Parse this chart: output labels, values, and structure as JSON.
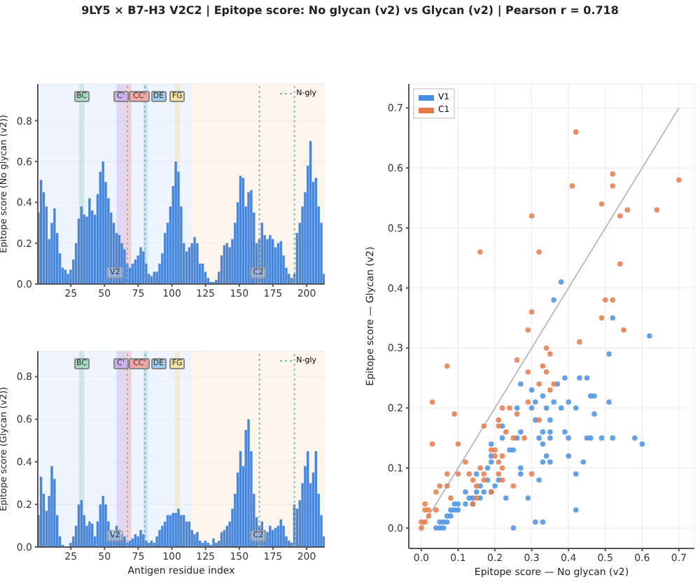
{
  "chart_data": [
    {
      "type": "bar",
      "title": "9LY5 × B7-H3 V2C2  |  Epitope score: No glycan (v2) vs Glycan (v2)  |  Pearson r = 0.718",
      "ylabel": "Epitope score (No glycan (v2))",
      "color": "#4a86d8",
      "grid": "y",
      "legend": "top right",
      "x": [
        1,
        3,
        5,
        7,
        9,
        11,
        13,
        15,
        17,
        19,
        21,
        23,
        25,
        27,
        29,
        31,
        33,
        35,
        37,
        39,
        41,
        43,
        45,
        47,
        49,
        51,
        53,
        55,
        57,
        59,
        61,
        63,
        65,
        67,
        69,
        71,
        73,
        75,
        77,
        79,
        81,
        83,
        85,
        87,
        89,
        91,
        93,
        95,
        97,
        99,
        101,
        103,
        105,
        107,
        109,
        111,
        113,
        115,
        117,
        119,
        121,
        123,
        125,
        127,
        129,
        131,
        133,
        135,
        137,
        139,
        141,
        143,
        145,
        147,
        149,
        151,
        153,
        155,
        157,
        159,
        161,
        163,
        165,
        167,
        169,
        171,
        173,
        175,
        177,
        179,
        181,
        183,
        185,
        187,
        189,
        191,
        193,
        195,
        197,
        199,
        201,
        203,
        205,
        207,
        209,
        211,
        213
      ],
      "values": [
        0.35,
        0.51,
        0.45,
        0.38,
        0.22,
        0.3,
        0.37,
        0.25,
        0.15,
        0.08,
        0.07,
        0.05,
        0.07,
        0.12,
        0.2,
        0.32,
        0.38,
        0.34,
        0.33,
        0.42,
        0.36,
        0.34,
        0.44,
        0.55,
        0.6,
        0.5,
        0.42,
        0.35,
        0.3,
        0.25,
        0.24,
        0.2,
        0.17,
        0.1,
        0.08,
        0.1,
        0.12,
        0.14,
        0.18,
        0.16,
        0.1,
        0.05,
        0.04,
        0.06,
        0.06,
        0.1,
        0.15,
        0.25,
        0.3,
        0.38,
        0.48,
        0.6,
        0.55,
        0.38,
        0.2,
        0.16,
        0.18,
        0.2,
        0.23,
        0.2,
        0.1,
        0.1,
        0.06,
        0.03,
        0.01,
        0.01,
        0.02,
        0.06,
        0.14,
        0.19,
        0.2,
        0.18,
        0.22,
        0.3,
        0.4,
        0.53,
        0.52,
        0.38,
        0.45,
        0.46,
        0.35,
        0.2,
        0.22,
        0.3,
        0.24,
        0.22,
        0.24,
        0.22,
        0.18,
        0.2,
        0.21,
        0.14,
        0.08,
        0.05,
        0.03,
        0.05,
        0.25,
        0.3,
        0.38,
        0.45,
        0.58,
        0.7,
        0.5,
        0.52,
        0.38,
        0.3,
        0.05
      ],
      "xlim": [
        0.5,
        213.5
      ],
      "xticks": [
        25,
        50,
        75,
        100,
        125,
        150,
        175,
        200
      ],
      "ylim": [
        0,
        0.98
      ],
      "yticks": [
        {
          "value": 0,
          "label": "0.0"
        },
        {
          "value": 0.2,
          "label": "0.2"
        },
        {
          "value": 0.4,
          "label": "0.4"
        },
        {
          "value": 0.6,
          "label": "0.6"
        },
        {
          "value": 0.8,
          "label": "0.8"
        }
      ],
      "bands": [
        {
          "axis": "x",
          "from": 0.5,
          "to": 115,
          "label": "V2",
          "color": "#e4efff"
        },
        {
          "axis": "x",
          "from": 115,
          "to": 213.5,
          "label": "C2",
          "color": "#fdeedf"
        },
        {
          "axis": "x",
          "from": 31,
          "to": 35,
          "label": "BC",
          "color": "#a6dcc0"
        },
        {
          "axis": "x",
          "from": 59,
          "to": 65,
          "label": "C'",
          "color": "#cbb2ea"
        },
        {
          "axis": "x",
          "from": 65,
          "to": 70,
          "label": "CC'",
          "color": "#f3a6a6"
        },
        {
          "axis": "x",
          "from": 79,
          "to": 82,
          "label": "DE",
          "color": "#9fcdf0"
        },
        {
          "axis": "x",
          "from": 102,
          "to": 106,
          "label": "FG",
          "color": "#f5e2a4"
        }
      ],
      "ref_lines": [
        {
          "axis": "x",
          "value": 67,
          "color": "#7fb5b5",
          "line_style": "dotted"
        },
        {
          "axis": "x",
          "value": 80,
          "color": "#7fb5b5",
          "line_style": "dotted"
        },
        {
          "axis": "x",
          "value": 165,
          "color": "#7fb5b5",
          "line_style": "dotted"
        },
        {
          "axis": "x",
          "value": 191,
          "label": "N-gly",
          "color": "#7fb5b5",
          "line_style": "dotted"
        }
      ]
    },
    {
      "type": "bar",
      "ylabel": "Epitope score (Glycan (v2))",
      "xlabel": "Antigen residue index",
      "color": "#4a86d8",
      "grid": "y",
      "legend": "top right",
      "x": [
        1,
        3,
        5,
        7,
        9,
        11,
        13,
        15,
        17,
        19,
        21,
        23,
        25,
        27,
        29,
        31,
        33,
        35,
        37,
        39,
        41,
        43,
        45,
        47,
        49,
        51,
        53,
        55,
        57,
        59,
        61,
        63,
        65,
        67,
        69,
        71,
        73,
        75,
        77,
        79,
        81,
        83,
        85,
        87,
        89,
        91,
        93,
        95,
        97,
        99,
        101,
        103,
        105,
        107,
        109,
        111,
        113,
        115,
        117,
        119,
        121,
        123,
        125,
        127,
        129,
        131,
        133,
        135,
        137,
        139,
        141,
        143,
        145,
        147,
        149,
        151,
        153,
        155,
        157,
        159,
        161,
        163,
        165,
        167,
        169,
        171,
        173,
        175,
        177,
        179,
        181,
        183,
        185,
        187,
        189,
        191,
        193,
        195,
        197,
        199,
        201,
        203,
        205,
        207,
        209,
        211,
        213
      ],
      "values": [
        0.15,
        0.33,
        0.25,
        0.17,
        0.24,
        0.38,
        0.32,
        0.15,
        0.05,
        0.01,
        0.0,
        0.0,
        0.02,
        0.05,
        0.1,
        0.2,
        0.22,
        0.15,
        0.1,
        0.12,
        0.11,
        0.05,
        0.12,
        0.2,
        0.24,
        0.2,
        0.12,
        0.08,
        0.06,
        0.1,
        0.08,
        0.06,
        0.05,
        0.02,
        0.03,
        0.04,
        0.06,
        0.05,
        0.08,
        0.06,
        0.03,
        0.02,
        0.03,
        0.02,
        0.05,
        0.08,
        0.1,
        0.12,
        0.15,
        0.15,
        0.16,
        0.16,
        0.18,
        0.15,
        0.15,
        0.12,
        0.12,
        0.08,
        0.06,
        0.07,
        0.03,
        0.02,
        0.03,
        0.02,
        0.01,
        0.04,
        0.02,
        0.03,
        0.07,
        0.08,
        0.1,
        0.12,
        0.18,
        0.25,
        0.35,
        0.45,
        0.38,
        0.55,
        0.6,
        0.45,
        0.25,
        0.14,
        0.1,
        0.12,
        0.08,
        0.07,
        0.1,
        0.08,
        0.09,
        0.1,
        0.13,
        0.1,
        0.05,
        0.03,
        0.02,
        0.2,
        0.18,
        0.22,
        0.3,
        0.38,
        0.45,
        0.3,
        0.35,
        0.45,
        0.25,
        0.15,
        0.05
      ],
      "xlim": [
        0.5,
        213.5
      ],
      "xticks": [
        25,
        50,
        75,
        100,
        125,
        150,
        175,
        200
      ],
      "ylim": [
        0,
        0.92
      ],
      "yticks": [
        {
          "value": 0,
          "label": "0.0"
        },
        {
          "value": 0.2,
          "label": "0.2"
        },
        {
          "value": 0.4,
          "label": "0.4"
        },
        {
          "value": 0.6,
          "label": "0.6"
        },
        {
          "value": 0.8,
          "label": "0.8"
        }
      ],
      "bands": [
        {
          "axis": "x",
          "from": 0.5,
          "to": 115,
          "label": "V2",
          "color": "#e4efff"
        },
        {
          "axis": "x",
          "from": 115,
          "to": 213.5,
          "label": "C2",
          "color": "#fdeedf"
        },
        {
          "axis": "x",
          "from": 31,
          "to": 35,
          "label": "BC",
          "color": "#a6dcc0"
        },
        {
          "axis": "x",
          "from": 59,
          "to": 65,
          "label": "C'",
          "color": "#cbb2ea"
        },
        {
          "axis": "x",
          "from": 65,
          "to": 70,
          "label": "CC'",
          "color": "#f3a6a6"
        },
        {
          "axis": "x",
          "from": 79,
          "to": 82,
          "label": "DE",
          "color": "#9fcdf0"
        },
        {
          "axis": "x",
          "from": 102,
          "to": 106,
          "label": "FG",
          "color": "#f5e2a4"
        }
      ],
      "ref_lines": [
        {
          "axis": "x",
          "value": 67,
          "color": "#7fb5b5",
          "line_style": "dotted"
        },
        {
          "axis": "x",
          "value": 80,
          "color": "#7fb5b5",
          "line_style": "dotted"
        },
        {
          "axis": "x",
          "value": 165,
          "color": "#7fb5b5",
          "line_style": "dotted"
        },
        {
          "axis": "x",
          "value": 191,
          "label": "N-gly",
          "color": "#7fb5b5",
          "line_style": "dotted"
        }
      ]
    },
    {
      "type": "scatter",
      "xlabel": "Epitope score — No glycan (v2)",
      "ylabel": "Epitope score — Glycan (v2)",
      "grid": true,
      "legend": "top left",
      "marker": "circle",
      "xlim": [
        -0.034,
        0.742
      ],
      "ylim": [
        -0.034,
        0.74
      ],
      "xticks": [
        {
          "value": 0,
          "label": "0.0"
        },
        {
          "value": 0.1,
          "label": "0.1"
        },
        {
          "value": 0.2,
          "label": "0.2"
        },
        {
          "value": 0.3,
          "label": "0.3"
        },
        {
          "value": 0.4,
          "label": "0.4"
        },
        {
          "value": 0.5,
          "label": "0.5"
        },
        {
          "value": 0.6,
          "label": "0.6"
        },
        {
          "value": 0.7,
          "label": "0.7"
        }
      ],
      "yticks": [
        {
          "value": 0,
          "label": "0.0"
        },
        {
          "value": 0.1,
          "label": "0.1"
        },
        {
          "value": 0.2,
          "label": "0.2"
        },
        {
          "value": 0.3,
          "label": "0.3"
        },
        {
          "value": 0.4,
          "label": "0.4"
        },
        {
          "value": 0.5,
          "label": "0.5"
        },
        {
          "value": 0.6,
          "label": "0.6"
        },
        {
          "value": 0.7,
          "label": "0.7"
        }
      ],
      "series": [
        {
          "type": "line",
          "color": "#b0b0b0",
          "marker": "none",
          "x": [
            0,
            0.7
          ],
          "values": [
            0,
            0.7
          ]
        },
        {
          "name": "V1",
          "color": "#4a90e2",
          "x": [
            0.38,
            0.36,
            0.52,
            0.62,
            0.51,
            0.43,
            0.45,
            0.47,
            0.46,
            0.39,
            0.37,
            0.3,
            0.26,
            0.27,
            0.33,
            0.3,
            0.31,
            0.36,
            0.34,
            0.38,
            0.4,
            0.42,
            0.51,
            0.47,
            0.31,
            0.35,
            0.27,
            0.26,
            0.33,
            0.35,
            0.35,
            0.39,
            0.4,
            0.45,
            0.46,
            0.49,
            0.52,
            0.58,
            0.6,
            0.32,
            0.33,
            0.22,
            0.22,
            0.24,
            0.25,
            0.19,
            0.19,
            0.19,
            0.18,
            0.34,
            0.35,
            0.33,
            0.4,
            0.44,
            0.27,
            0.42,
            0.32,
            0.27,
            0.21,
            0.15,
            0.18,
            0.16,
            0.2,
            0.15,
            0.12,
            0.19,
            0.23,
            0.29,
            0.14,
            0.17,
            0.16,
            0.13,
            0.12,
            0.14,
            0.09,
            0.1,
            0.1,
            0.09,
            0.08,
            0.08,
            0.07,
            0.07,
            0.06,
            0.05,
            0.04,
            0.05,
            0.06,
            0.42,
            0.33,
            0.31,
            0.25
          ],
          "values": [
            0.41,
            0.38,
            0.35,
            0.32,
            0.29,
            0.25,
            0.25,
            0.22,
            0.22,
            0.25,
            0.24,
            0.23,
            0.2,
            0.24,
            0.22,
            0.2,
            0.21,
            0.21,
            0.2,
            0.2,
            0.21,
            0.2,
            0.21,
            0.19,
            0.18,
            0.18,
            0.16,
            0.15,
            0.16,
            0.16,
            0.15,
            0.16,
            0.15,
            0.15,
            0.15,
            0.15,
            0.15,
            0.15,
            0.14,
            0.15,
            0.14,
            0.17,
            0.15,
            0.13,
            0.13,
            0.14,
            0.12,
            0.11,
            0.1,
            0.12,
            0.11,
            0.11,
            0.12,
            0.11,
            0.1,
            0.09,
            0.08,
            0.09,
            0.08,
            0.09,
            0.08,
            0.07,
            0.07,
            0.06,
            0.06,
            0.06,
            0.05,
            0.05,
            0.05,
            0.06,
            0.05,
            0.05,
            0.04,
            0.04,
            0.04,
            0.04,
            0.03,
            0.03,
            0.03,
            0.02,
            0.02,
            0.01,
            0.01,
            0.01,
            0.0,
            0.0,
            0.0,
            0.03,
            0.01,
            0.01,
            0.0
          ]
        },
        {
          "name": "C1",
          "color": "#e8794a",
          "x": [
            0.42,
            0.52,
            0.52,
            0.41,
            0.7,
            0.49,
            0.56,
            0.64,
            0.54,
            0.3,
            0.16,
            0.32,
            0.54,
            0.5,
            0.52,
            0.3,
            0.49,
            0.55,
            0.29,
            0.43,
            0.34,
            0.35,
            0.26,
            0.33,
            0.34,
            0.29,
            0.07,
            0.32,
            0.36,
            0.35,
            0.29,
            0.03,
            0.22,
            0.24,
            0.26,
            0.09,
            0.32,
            0.21,
            0.21,
            0.17,
            0.23,
            0.25,
            0.28,
            0.03,
            0.1,
            0.2,
            0.19,
            0.22,
            0.2,
            0.21,
            0.12,
            0.16,
            0.22,
            0.07,
            0.1,
            0.17,
            0.13,
            0.3,
            0.21,
            0.22,
            0.14,
            0.17,
            0.15,
            0.19,
            0.25,
            0.05,
            0.07,
            0.04,
            0.08,
            0.15,
            0.04,
            0.01,
            0.14,
            0.01,
            0.02,
            0.02,
            0.0,
            0.01,
            0.0
          ],
          "values": [
            0.66,
            0.59,
            0.57,
            0.57,
            0.58,
            0.54,
            0.53,
            0.53,
            0.52,
            0.52,
            0.46,
            0.46,
            0.44,
            0.38,
            0.38,
            0.36,
            0.35,
            0.33,
            0.33,
            0.31,
            0.3,
            0.29,
            0.28,
            0.27,
            0.26,
            0.26,
            0.27,
            0.24,
            0.24,
            0.23,
            0.21,
            0.21,
            0.2,
            0.2,
            0.19,
            0.19,
            0.18,
            0.18,
            0.17,
            0.17,
            0.16,
            0.15,
            0.15,
            0.14,
            0.14,
            0.13,
            0.13,
            0.12,
            0.12,
            0.11,
            0.11,
            0.1,
            0.1,
            0.09,
            0.09,
            0.09,
            0.09,
            0.09,
            0.09,
            0.08,
            0.08,
            0.08,
            0.07,
            0.06,
            0.07,
            0.07,
            0.07,
            0.06,
            0.05,
            0.05,
            0.03,
            0.04,
            0.04,
            0.03,
            0.03,
            0.02,
            0.01,
            0.01,
            0.0
          ]
        }
      ]
    }
  ]
}
